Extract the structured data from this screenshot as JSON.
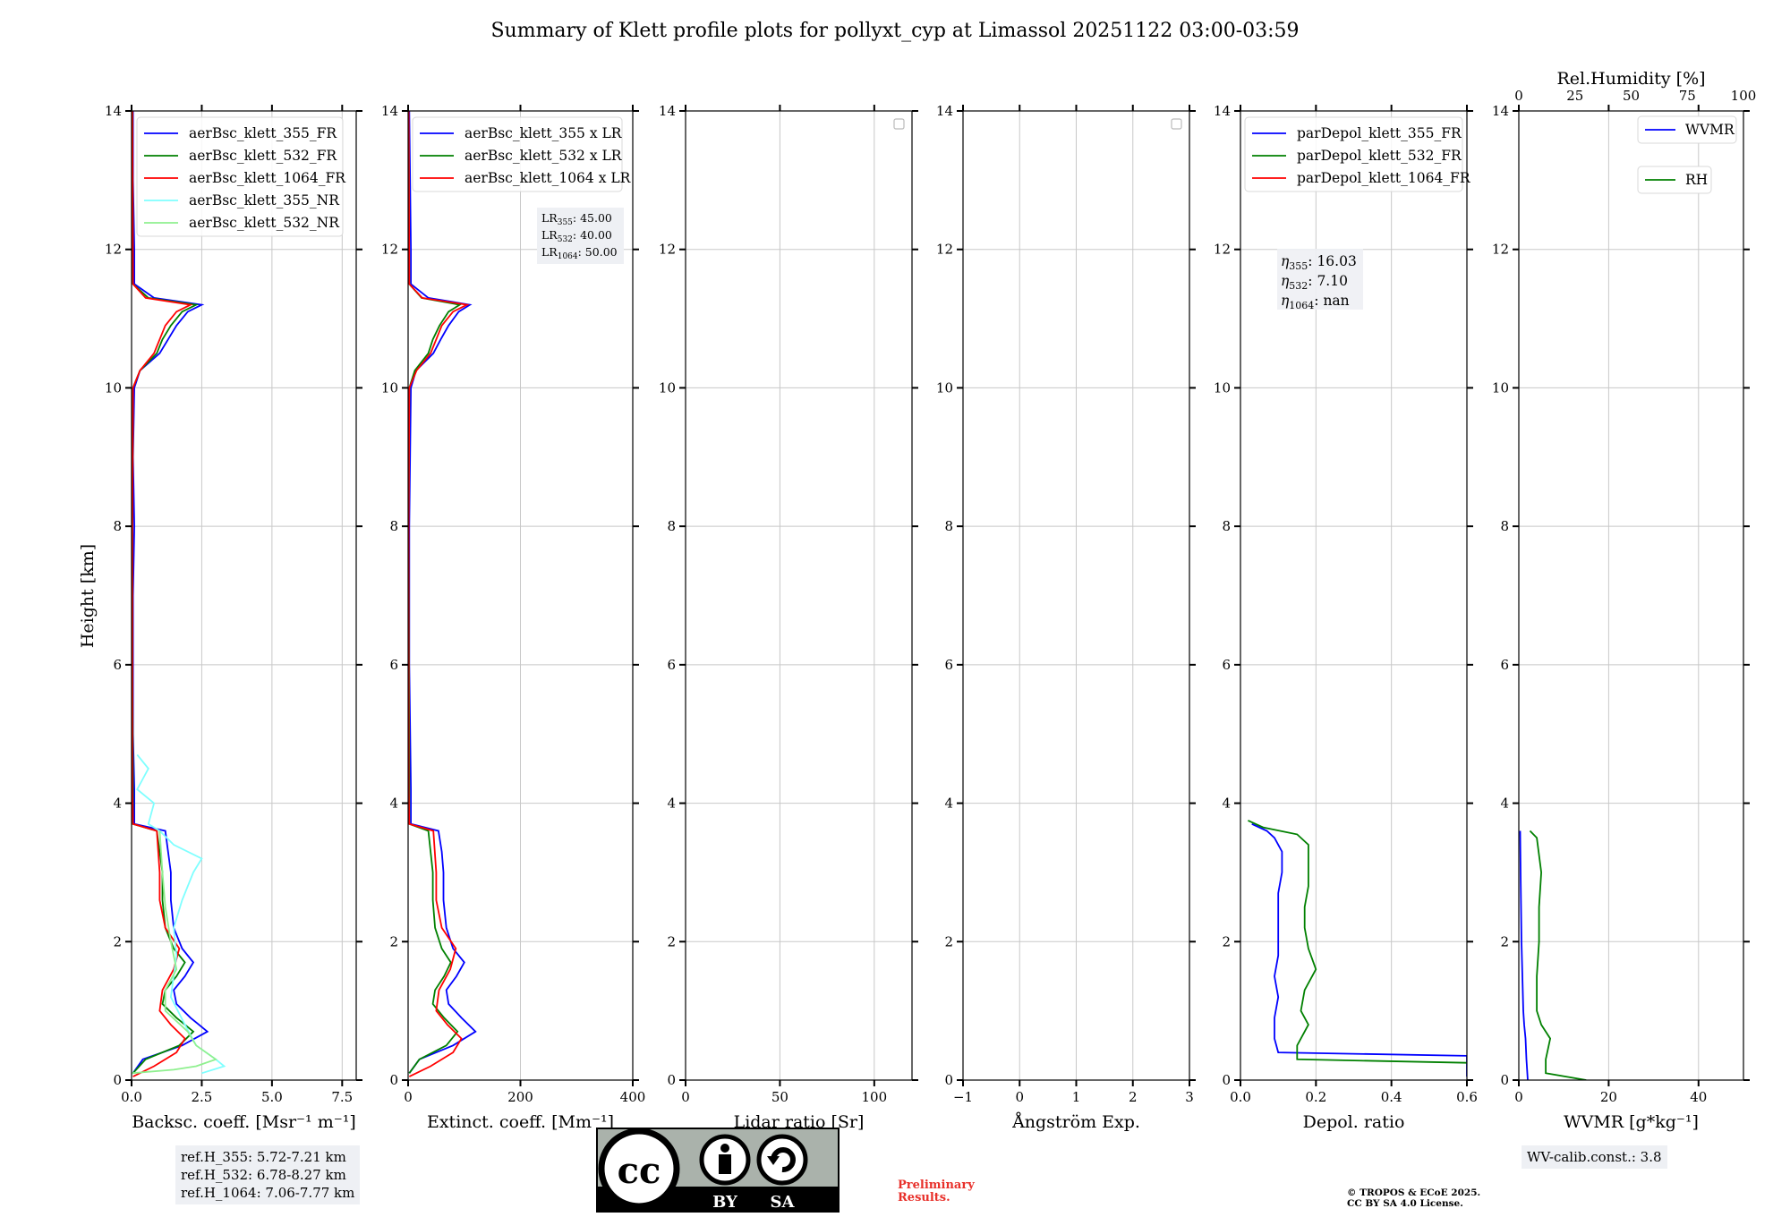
{
  "title": "Summary of Klett profile plots for pollyxt_cyp at Limassol 20251122 03:00-03:59",
  "ylabel": "Height [km]",
  "colors": {
    "blue": "#0000ff",
    "green": "#008000",
    "red": "#ff0000",
    "cyan": "#7fffff",
    "lightgreen": "#8ff08f"
  },
  "chart_data": [
    {
      "type": "line",
      "id": "backscatter",
      "xlabel": "Backsc. coeff. [Msr⁻¹ m⁻¹]",
      "xlim": [
        0,
        8
      ],
      "ylim": [
        0,
        14
      ],
      "xticks": [
        "0.0",
        "2.5",
        "5.0",
        "7.5"
      ],
      "xtick_values": [
        0,
        2.5,
        5,
        7.5
      ],
      "yticks": [
        "0",
        "2",
        "4",
        "6",
        "8",
        "10",
        "12",
        "14"
      ],
      "legend": [
        "aerBsc_klett_355_FR",
        "aerBsc_klett_532_FR",
        "aerBsc_klett_1064_FR",
        "aerBsc_klett_355_NR",
        "aerBsc_klett_532_NR"
      ],
      "series": [
        {
          "name": "aerBsc_klett_355_FR",
          "color": "#0000ff",
          "y": [
            0.1,
            0.3,
            0.5,
            0.7,
            0.9,
            1.1,
            1.3,
            1.5,
            1.7,
            1.9,
            2.2,
            2.6,
            3.0,
            3.3,
            3.6,
            3.7,
            4.2,
            5.0,
            6.0,
            7.0,
            8.0,
            9.0,
            10.0,
            10.25,
            10.5,
            10.7,
            10.9,
            11.1,
            11.2,
            11.3,
            11.5,
            12.0,
            13.0,
            14.0
          ],
          "x": [
            0.05,
            0.4,
            1.8,
            2.7,
            2.1,
            1.6,
            1.5,
            1.9,
            2.2,
            1.8,
            1.5,
            1.4,
            1.4,
            1.3,
            1.2,
            0.1,
            0.1,
            0.05,
            0.05,
            0.05,
            0.1,
            0.05,
            0.1,
            0.3,
            1.0,
            1.3,
            1.6,
            2.0,
            2.5,
            0.8,
            0.1,
            0.1,
            0.05,
            0.05
          ]
        },
        {
          "name": "aerBsc_klett_532_FR",
          "color": "#008000",
          "y": [
            0.1,
            0.3,
            0.5,
            0.7,
            0.9,
            1.1,
            1.3,
            1.5,
            1.7,
            1.9,
            2.2,
            2.6,
            3.0,
            3.3,
            3.6,
            3.7,
            4.2,
            6.0,
            8.0,
            10.0,
            10.25,
            10.5,
            10.7,
            10.9,
            11.1,
            11.2,
            11.3,
            11.5,
            14.0
          ],
          "x": [
            0.05,
            0.5,
            1.7,
            2.2,
            1.6,
            1.1,
            1.2,
            1.6,
            1.9,
            1.5,
            1.2,
            1.1,
            1.1,
            1.0,
            0.9,
            0.05,
            0.05,
            0.03,
            0.03,
            0.05,
            0.3,
            0.9,
            1.1,
            1.4,
            1.8,
            2.3,
            0.6,
            0.05,
            0.03
          ]
        },
        {
          "name": "aerBsc_klett_1064_FR",
          "color": "#ff0000",
          "y": [
            0.05,
            0.2,
            0.4,
            0.6,
            0.8,
            1.0,
            1.3,
            1.6,
            1.9,
            2.2,
            2.6,
            3.0,
            3.6,
            3.7,
            4.2,
            8.0,
            10.0,
            10.25,
            10.5,
            10.7,
            10.9,
            11.1,
            11.2,
            11.3,
            11.5,
            14.0
          ],
          "x": [
            0.05,
            0.8,
            1.6,
            1.9,
            1.4,
            1.0,
            1.1,
            1.5,
            1.7,
            1.2,
            1.0,
            1.0,
            0.9,
            0.05,
            0.03,
            0.03,
            0.05,
            0.3,
            0.8,
            1.0,
            1.2,
            1.6,
            2.1,
            0.5,
            0.05,
            0.03
          ]
        },
        {
          "name": "aerBsc_klett_355_NR",
          "color": "#7fffff",
          "y": [
            0.1,
            0.2,
            0.3,
            0.5,
            0.8,
            1.2,
            1.8,
            2.2,
            2.6,
            3.0,
            3.2,
            3.4,
            3.6,
            3.7,
            4.0,
            4.2,
            4.5,
            4.7
          ],
          "x": [
            2.5,
            3.3,
            3.0,
            2.3,
            1.9,
            1.4,
            1.6,
            1.5,
            1.8,
            2.2,
            2.5,
            1.5,
            1.0,
            0.6,
            0.8,
            0.2,
            0.6,
            0.2
          ]
        },
        {
          "name": "aerBsc_klett_532_NR",
          "color": "#8ff08f",
          "y": [
            0.1,
            0.15,
            0.2,
            0.3,
            0.5,
            0.7,
            1.0,
            1.3,
            1.6,
            2.0,
            2.5,
            3.0,
            3.6
          ],
          "x": [
            0.0,
            1.5,
            2.3,
            3.0,
            2.3,
            2.0,
            1.2,
            1.2,
            1.6,
            1.4,
            1.2,
            1.1,
            1.0
          ]
        }
      ],
      "ref_heights": [
        "ref.H_355: 5.72-7.21 km",
        "ref.H_532: 6.78-8.27 km",
        "ref.H_1064: 7.06-7.77 km"
      ]
    },
    {
      "type": "line",
      "id": "extinction",
      "xlabel": "Extinct. coeff. [Mm⁻¹]",
      "xlim": [
        0,
        400
      ],
      "ylim": [
        0,
        14
      ],
      "xticks": [
        "0",
        "200",
        "400"
      ],
      "xtick_values": [
        0,
        200,
        400
      ],
      "yticks": [
        "0",
        "2",
        "4",
        "6",
        "8",
        "10",
        "12",
        "14"
      ],
      "legend": [
        "aerBsc_klett_355 x LR",
        "aerBsc_klett_532 x LR",
        "aerBsc_klett_1064 x LR"
      ],
      "lidar_ratios": [
        {
          "label": "LR",
          "sub": "355",
          "value": ": 45.00"
        },
        {
          "label": "LR",
          "sub": "532",
          "value": ": 40.00"
        },
        {
          "label": "LR",
          "sub": "1064",
          "value": ": 50.00"
        }
      ],
      "series": [
        {
          "name": "aerBsc_klett_355 x LR",
          "color": "#0000ff",
          "y": [
            0.1,
            0.3,
            0.5,
            0.7,
            0.9,
            1.1,
            1.3,
            1.5,
            1.7,
            1.9,
            2.2,
            2.6,
            3.0,
            3.3,
            3.6,
            3.7,
            4.2,
            6.0,
            8.0,
            10.0,
            10.25,
            10.5,
            10.7,
            10.9,
            11.1,
            11.2,
            11.3,
            11.5,
            12.0,
            14.0
          ],
          "x": [
            2,
            20,
            80,
            120,
            95,
            72,
            68,
            86,
            100,
            80,
            68,
            63,
            63,
            60,
            54,
            5,
            5,
            2,
            2,
            5,
            14,
            45,
            58,
            72,
            90,
            110,
            36,
            5,
            5,
            2
          ]
        },
        {
          "name": "aerBsc_klett_532 x LR",
          "color": "#008000",
          "y": [
            0.1,
            0.3,
            0.5,
            0.7,
            0.9,
            1.1,
            1.3,
            1.5,
            1.7,
            1.9,
            2.2,
            2.6,
            3.0,
            3.3,
            3.6,
            3.7,
            4.2,
            8.0,
            10.0,
            10.25,
            10.5,
            10.7,
            10.9,
            11.1,
            11.2,
            11.3,
            11.5,
            14.0
          ],
          "x": [
            2,
            20,
            68,
            88,
            64,
            44,
            48,
            64,
            76,
            60,
            48,
            44,
            44,
            40,
            36,
            2,
            2,
            1,
            2,
            12,
            36,
            44,
            56,
            72,
            92,
            24,
            2,
            1
          ]
        },
        {
          "name": "aerBsc_klett_1064 x LR",
          "color": "#ff0000",
          "y": [
            0.05,
            0.2,
            0.4,
            0.6,
            0.8,
            1.0,
            1.3,
            1.6,
            1.9,
            2.2,
            2.6,
            3.0,
            3.6,
            3.7,
            4.2,
            8.0,
            10.0,
            10.25,
            10.5,
            10.7,
            10.9,
            11.1,
            11.2,
            11.3,
            11.5,
            14.0
          ],
          "x": [
            2,
            40,
            80,
            95,
            70,
            50,
            55,
            75,
            85,
            60,
            50,
            50,
            45,
            2,
            1,
            1,
            2,
            15,
            40,
            50,
            60,
            80,
            105,
            25,
            2,
            1
          ]
        }
      ]
    },
    {
      "type": "line",
      "id": "lidar-ratio",
      "xlabel": "Lidar ratio [Sr]",
      "xlim": [
        0,
        120
      ],
      "ylim": [
        0,
        14
      ],
      "xticks": [
        "0",
        "50",
        "100"
      ],
      "xtick_values": [
        0,
        50,
        100
      ],
      "yticks": [
        "0",
        "2",
        "4",
        "6",
        "8",
        "10",
        "12",
        "14"
      ],
      "series": []
    },
    {
      "type": "line",
      "id": "angstrom",
      "xlabel": "Ångström Exp.",
      "xlim": [
        -1,
        3
      ],
      "ylim": [
        0,
        14
      ],
      "xticks": [
        "−1",
        "0",
        "1",
        "2",
        "3"
      ],
      "xtick_values": [
        -1,
        0,
        1,
        2,
        3
      ],
      "yticks": [
        "0",
        "2",
        "4",
        "6",
        "8",
        "10",
        "12",
        "14"
      ],
      "series": []
    },
    {
      "type": "line",
      "id": "depol",
      "xlabel": "Depol. ratio",
      "xlim": [
        0,
        0.6
      ],
      "ylim": [
        0,
        14
      ],
      "xticks": [
        "0.0",
        "0.2",
        "0.4",
        "0.6"
      ],
      "xtick_values": [
        0,
        0.2,
        0.4,
        0.6
      ],
      "yticks": [
        "0",
        "2",
        "4",
        "6",
        "8",
        "10",
        "12",
        "14"
      ],
      "legend": [
        "parDepol_klett_355_FR",
        "parDepol_klett_532_FR",
        "parDepol_klett_1064_FR"
      ],
      "eta": [
        {
          "sub": "355",
          "value": ": 16.03"
        },
        {
          "sub": "532",
          "value": ": 7.10"
        },
        {
          "sub": "1064",
          "value": ": nan"
        }
      ],
      "series": [
        {
          "name": "parDepol_klett_355_FR",
          "color": "#0000ff",
          "y": [
            0.05,
            0.35,
            0.4,
            0.6,
            0.9,
            1.2,
            1.5,
            1.8,
            2.1,
            2.4,
            2.7,
            3.0,
            3.3,
            3.5,
            3.6,
            3.7
          ],
          "x": [
            0.6,
            0.6,
            0.1,
            0.09,
            0.09,
            0.1,
            0.09,
            0.1,
            0.1,
            0.1,
            0.1,
            0.11,
            0.11,
            0.09,
            0.07,
            0.03
          ]
        },
        {
          "name": "parDepol_klett_532_FR",
          "color": "#008000",
          "y": [
            0.25,
            0.3,
            0.5,
            0.8,
            1.0,
            1.3,
            1.6,
            1.9,
            2.2,
            2.5,
            2.8,
            3.1,
            3.4,
            3.55,
            3.65,
            3.75
          ],
          "x": [
            0.6,
            0.15,
            0.15,
            0.18,
            0.16,
            0.17,
            0.2,
            0.18,
            0.17,
            0.17,
            0.18,
            0.18,
            0.18,
            0.15,
            0.06,
            0.02
          ]
        },
        {
          "name": "parDepol_klett_1064_FR",
          "color": "#ff0000",
          "y": [],
          "x": []
        }
      ]
    },
    {
      "type": "line",
      "id": "wvmr",
      "xlabel": "WVMR [g*kg⁻¹]",
      "top_xlabel": "Rel.Humidity [%]",
      "xlim": [
        0,
        50
      ],
      "ylim": [
        0,
        14
      ],
      "top_xlim": [
        0,
        100
      ],
      "xticks": [
        "0",
        "20",
        "40"
      ],
      "xtick_values": [
        0,
        20,
        40
      ],
      "top_xticks": [
        "0",
        "25",
        "50",
        "75",
        "100"
      ],
      "top_xtick_values": [
        0,
        25,
        50,
        75,
        100
      ],
      "yticks": [
        "0",
        "2",
        "4",
        "6",
        "8",
        "10",
        "12",
        "14"
      ],
      "legend": [
        "WVMR",
        "RH"
      ],
      "wv_calib": "WV-calib.const.: 3.8",
      "series": [
        {
          "name": "WVMR",
          "color": "#0000ff",
          "axis": "bottom",
          "y": [
            0.0,
            0.3,
            0.6,
            0.8,
            1.0,
            1.5,
            2.0,
            3.0,
            3.6
          ],
          "x": [
            2.0,
            1.7,
            1.5,
            1.2,
            1.0,
            0.8,
            0.6,
            0.4,
            0.3
          ]
        },
        {
          "name": "RH",
          "color": "#008000",
          "axis": "top",
          "y": [
            0.0,
            0.1,
            0.3,
            0.6,
            0.8,
            1.0,
            1.5,
            2.0,
            2.5,
            3.0,
            3.5,
            3.6
          ],
          "x": [
            30,
            12,
            12,
            14,
            10,
            8,
            8,
            9,
            9,
            10,
            8,
            5
          ]
        }
      ]
    }
  ],
  "logo": {
    "cc": "cc",
    "by": "BY",
    "sa": "SA"
  },
  "preliminary": [
    "Preliminary",
    "Results."
  ],
  "copyright": [
    "© TROPOS & ECoE 2025.",
    "CC BY SA 4.0 License."
  ]
}
